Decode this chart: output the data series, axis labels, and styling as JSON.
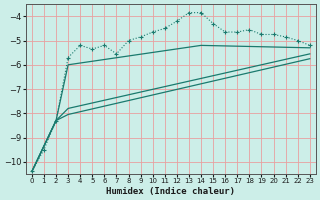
{
  "xlabel": "Humidex (Indice chaleur)",
  "xlim": [
    -0.5,
    23.5
  ],
  "ylim": [
    -10.5,
    -3.5
  ],
  "yticks": [
    -10,
    -9,
    -8,
    -7,
    -6,
    -5,
    -4
  ],
  "xticks": [
    0,
    1,
    2,
    3,
    4,
    5,
    6,
    7,
    8,
    9,
    10,
    11,
    12,
    13,
    14,
    15,
    16,
    17,
    18,
    19,
    20,
    21,
    22,
    23
  ],
  "bg_color": "#cceee8",
  "grid_color": "#e8a0a0",
  "line_color": "#1a7a6e",
  "line1_x": [
    0,
    1,
    2,
    3,
    4,
    5,
    6,
    7,
    8,
    9,
    10,
    11,
    12,
    13,
    14,
    15,
    16,
    17,
    18,
    19,
    20,
    21,
    22,
    23
  ],
  "line1_y": [
    -10.4,
    -9.5,
    -8.3,
    -5.7,
    -5.2,
    -5.35,
    -5.2,
    -5.55,
    -5.0,
    -4.85,
    -4.65,
    -4.5,
    -4.2,
    -3.85,
    -3.85,
    -4.3,
    -4.65,
    -4.65,
    -4.55,
    -4.75,
    -4.75,
    -4.85,
    -5.0,
    -5.2
  ],
  "line2_x": [
    0,
    2,
    3,
    14,
    23
  ],
  "line2_y": [
    -10.4,
    -8.3,
    -6.0,
    -5.2,
    -5.3
  ],
  "line3_x": [
    0,
    2,
    3,
    23
  ],
  "line3_y": [
    -10.4,
    -8.3,
    -7.8,
    -5.55
  ],
  "line4_x": [
    0,
    2,
    3,
    23
  ],
  "line4_y": [
    -10.4,
    -8.3,
    -8.05,
    -5.75
  ]
}
